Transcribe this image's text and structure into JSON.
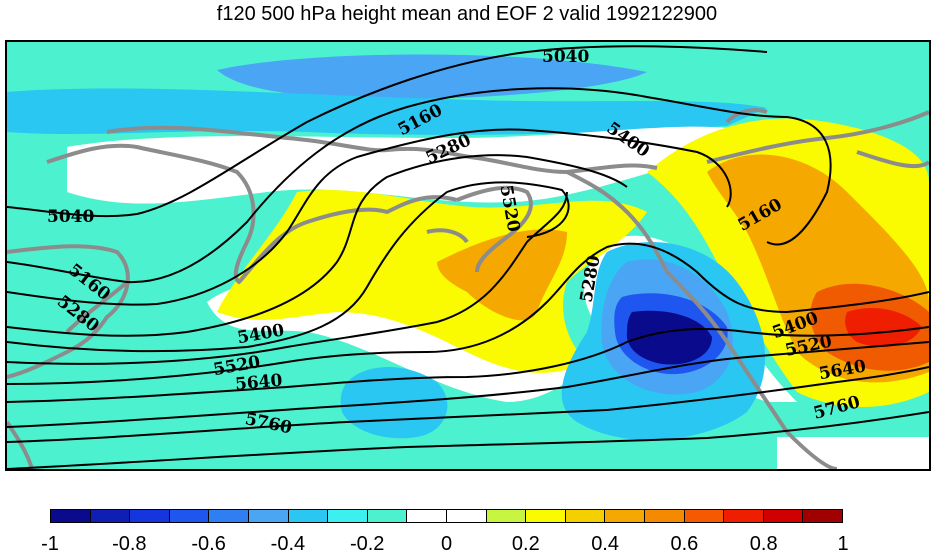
{
  "title": "f120 500 hPa height mean and EOF 2 valid 1992122900",
  "colorbar": {
    "colors": [
      "#0a0a8c",
      "#0f1fb4",
      "#1436dc",
      "#1f56f0",
      "#2f7ef2",
      "#4aa6f4",
      "#29c7f2",
      "#3cf0f0",
      "#4cf2cf",
      "#ffffff",
      "#ffffff",
      "#c8f542",
      "#fafa00",
      "#f5d000",
      "#f5a800",
      "#f58a00",
      "#f55a00",
      "#f01e00",
      "#d00000",
      "#a00000"
    ],
    "tick_labels": [
      "-1",
      "-0.8",
      "-0.6",
      "-0.4",
      "-0.2",
      "0",
      "0.2",
      "0.4",
      "0.6",
      "0.8",
      "1"
    ],
    "range": [
      -1,
      1
    ]
  },
  "contour_labels": [
    {
      "text": "5040"
    },
    {
      "text": "5040"
    },
    {
      "text": "5160"
    },
    {
      "text": "5160"
    },
    {
      "text": "5160"
    },
    {
      "text": "5280"
    },
    {
      "text": "5280"
    },
    {
      "text": "5280"
    },
    {
      "text": "5400"
    },
    {
      "text": "5400"
    },
    {
      "text": "5400"
    },
    {
      "text": "5520"
    },
    {
      "text": "5520"
    },
    {
      "text": "5520"
    },
    {
      "text": "5640"
    },
    {
      "text": "5640"
    },
    {
      "text": "5760"
    },
    {
      "text": "5760"
    }
  ],
  "colors": {
    "ocean_fill": "#4cf2cf",
    "coast": "#8c8c8c",
    "contour": "#000000"
  }
}
